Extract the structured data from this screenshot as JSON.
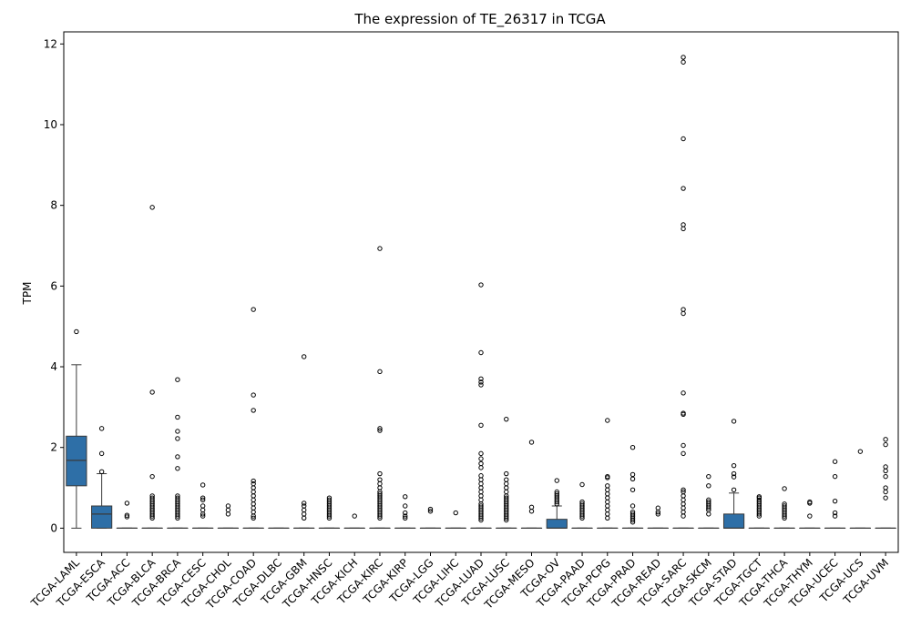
{
  "chart_data": {
    "type": "box",
    "title": "The expression of TE_26317 in TCGA",
    "xlabel": "",
    "ylabel": "TPM",
    "ylim": [
      -0.6,
      12.3
    ],
    "yticks": [
      0,
      2,
      4,
      6,
      8,
      10,
      12
    ],
    "color": "#2e6fa7",
    "categories": [
      "TCGA-LAML",
      "TCGA-ESCA",
      "TCGA-ACC",
      "TCGA-BLCA",
      "TCGA-BRCA",
      "TCGA-CESC",
      "TCGA-CHOL",
      "TCGA-COAD",
      "TCGA-DLBC",
      "TCGA-GBM",
      "TCGA-HNSC",
      "TCGA-KICH",
      "TCGA-KIRC",
      "TCGA-KIRP",
      "TCGA-LGG",
      "TCGA-LIHC",
      "TCGA-LUAD",
      "TCGA-LUSC",
      "TCGA-MESO",
      "TCGA-OV",
      "TCGA-PAAD",
      "TCGA-PCPG",
      "TCGA-PRAD",
      "TCGA-READ",
      "TCGA-SARC",
      "TCGA-SKCM",
      "TCGA-STAD",
      "TCGA-TGCT",
      "TCGA-THCA",
      "TCGA-THYM",
      "TCGA-UCEC",
      "TCGA-UCS",
      "TCGA-UVM"
    ],
    "boxes": [
      {
        "min": 0,
        "q1": 1.05,
        "median": 1.68,
        "q3": 2.28,
        "max": 4.05,
        "outliers": [
          4.87
        ]
      },
      {
        "min": 0,
        "q1": 0,
        "median": 0.35,
        "q3": 0.55,
        "max": 1.35,
        "outliers": [
          1.4,
          1.85,
          2.47
        ]
      },
      {
        "min": 0,
        "q1": 0,
        "median": 0,
        "q3": 0,
        "max": 0,
        "outliers": [
          0.28,
          0.32,
          0.62
        ]
      },
      {
        "min": 0,
        "q1": 0,
        "median": 0,
        "q3": 0,
        "max": 0,
        "outliers": [
          0.25,
          0.3,
          0.35,
          0.4,
          0.45,
          0.5,
          0.55,
          0.6,
          0.65,
          0.7,
          0.75,
          0.8,
          1.28,
          3.37,
          7.95
        ]
      },
      {
        "min": 0,
        "q1": 0,
        "median": 0,
        "q3": 0,
        "max": 0,
        "outliers": [
          0.25,
          0.3,
          0.35,
          0.4,
          0.45,
          0.5,
          0.55,
          0.6,
          0.65,
          0.7,
          0.75,
          0.8,
          1.48,
          1.77,
          2.22,
          2.4,
          2.75,
          3.68
        ]
      },
      {
        "min": 0,
        "q1": 0,
        "median": 0,
        "q3": 0,
        "max": 0,
        "outliers": [
          0.3,
          0.35,
          0.45,
          0.55,
          0.7,
          0.75,
          1.07
        ]
      },
      {
        "min": 0,
        "q1": 0,
        "median": 0,
        "q3": 0,
        "max": 0,
        "outliers": [
          0.35,
          0.45,
          0.55
        ]
      },
      {
        "min": 0,
        "q1": 0,
        "median": 0,
        "q3": 0,
        "max": 0,
        "outliers": [
          0.25,
          0.3,
          0.4,
          0.5,
          0.6,
          0.7,
          0.8,
          0.9,
          1.0,
          1.1,
          1.17,
          2.92,
          3.3,
          5.42
        ]
      },
      {
        "min": 0,
        "q1": 0,
        "median": 0,
        "q3": 0,
        "max": 0,
        "outliers": []
      },
      {
        "min": 0,
        "q1": 0,
        "median": 0,
        "q3": 0,
        "max": 0,
        "outliers": [
          0.25,
          0.35,
          0.45,
          0.55,
          0.62,
          4.25
        ]
      },
      {
        "min": 0,
        "q1": 0,
        "median": 0,
        "q3": 0,
        "max": 0,
        "outliers": [
          0.25,
          0.3,
          0.35,
          0.4,
          0.45,
          0.5,
          0.55,
          0.6,
          0.65,
          0.7,
          0.75
        ]
      },
      {
        "min": 0,
        "q1": 0,
        "median": 0,
        "q3": 0,
        "max": 0,
        "outliers": [
          0.3
        ]
      },
      {
        "min": 0,
        "q1": 0,
        "median": 0,
        "q3": 0,
        "max": 0,
        "outliers": [
          0.25,
          0.3,
          0.35,
          0.4,
          0.45,
          0.5,
          0.55,
          0.6,
          0.65,
          0.7,
          0.75,
          0.8,
          0.85,
          0.9,
          1.0,
          1.1,
          1.2,
          1.35,
          2.42,
          2.47,
          3.88,
          6.93
        ]
      },
      {
        "min": 0,
        "q1": 0,
        "median": 0,
        "q3": 0,
        "max": 0,
        "outliers": [
          0.25,
          0.3,
          0.38,
          0.55,
          0.78
        ]
      },
      {
        "min": 0,
        "q1": 0,
        "median": 0,
        "q3": 0,
        "max": 0,
        "outliers": [
          0.42,
          0.47
        ]
      },
      {
        "min": 0,
        "q1": 0,
        "median": 0,
        "q3": 0,
        "max": 0,
        "outliers": [
          0.38
        ]
      },
      {
        "min": 0,
        "q1": 0,
        "median": 0,
        "q3": 0,
        "max": 0,
        "outliers": [
          0.2,
          0.25,
          0.3,
          0.35,
          0.4,
          0.45,
          0.5,
          0.55,
          0.6,
          0.7,
          0.8,
          0.9,
          1.0,
          1.1,
          1.2,
          1.3,
          1.5,
          1.6,
          1.72,
          1.85,
          2.55,
          3.55,
          3.62,
          3.7,
          4.35,
          6.03
        ]
      },
      {
        "min": 0,
        "q1": 0,
        "median": 0,
        "q3": 0,
        "max": 0,
        "outliers": [
          0.2,
          0.25,
          0.3,
          0.35,
          0.4,
          0.45,
          0.5,
          0.55,
          0.6,
          0.65,
          0.7,
          0.75,
          0.8,
          0.9,
          1.0,
          1.1,
          1.2,
          1.35,
          2.7
        ]
      },
      {
        "min": 0,
        "q1": 0,
        "median": 0,
        "q3": 0,
        "max": 0,
        "outliers": [
          0.42,
          0.52,
          2.13
        ]
      },
      {
        "min": 0,
        "q1": 0,
        "median": 0,
        "q3": 0.22,
        "max": 0.55,
        "outliers": [
          0.6,
          0.65,
          0.7,
          0.75,
          0.8,
          0.85,
          0.9,
          1.18
        ]
      },
      {
        "min": 0,
        "q1": 0,
        "median": 0,
        "q3": 0,
        "max": 0,
        "outliers": [
          0.25,
          0.3,
          0.35,
          0.4,
          0.45,
          0.5,
          0.55,
          0.6,
          0.65,
          1.08
        ]
      },
      {
        "min": 0,
        "q1": 0,
        "median": 0,
        "q3": 0,
        "max": 0,
        "outliers": [
          0.25,
          0.35,
          0.45,
          0.55,
          0.65,
          0.75,
          0.85,
          0.95,
          1.05,
          1.25,
          1.28,
          2.67
        ]
      },
      {
        "min": 0,
        "q1": 0,
        "median": 0,
        "q3": 0,
        "max": 0,
        "outliers": [
          0.15,
          0.2,
          0.25,
          0.3,
          0.35,
          0.4,
          0.55,
          0.95,
          1.22,
          1.33,
          2.0
        ]
      },
      {
        "min": 0,
        "q1": 0,
        "median": 0,
        "q3": 0,
        "max": 0,
        "outliers": [
          0.35,
          0.4,
          0.5
        ]
      },
      {
        "min": 0,
        "q1": 0,
        "median": 0,
        "q3": 0,
        "max": 0,
        "outliers": [
          0.3,
          0.4,
          0.5,
          0.6,
          0.7,
          0.8,
          0.9,
          0.95,
          1.85,
          2.05,
          2.82,
          2.85,
          3.35,
          5.32,
          5.42,
          7.42,
          7.52,
          8.42,
          9.65,
          11.55,
          11.67
        ]
      },
      {
        "min": 0,
        "q1": 0,
        "median": 0,
        "q3": 0,
        "max": 0,
        "outliers": [
          0.35,
          0.45,
          0.5,
          0.55,
          0.6,
          0.65,
          0.7,
          1.05,
          1.28
        ]
      },
      {
        "min": 0,
        "q1": 0,
        "median": 0,
        "q3": 0.35,
        "max": 0.87,
        "outliers": [
          0.95,
          1.27,
          1.35,
          1.55,
          2.65
        ]
      },
      {
        "min": 0,
        "q1": 0,
        "median": 0,
        "q3": 0,
        "max": 0,
        "outliers": [
          0.3,
          0.35,
          0.4,
          0.45,
          0.5,
          0.55,
          0.6,
          0.65,
          0.7,
          0.75,
          0.78
        ]
      },
      {
        "min": 0,
        "q1": 0,
        "median": 0,
        "q3": 0,
        "max": 0,
        "outliers": [
          0.25,
          0.3,
          0.35,
          0.4,
          0.45,
          0.5,
          0.55,
          0.6,
          0.98
        ]
      },
      {
        "min": 0,
        "q1": 0,
        "median": 0,
        "q3": 0,
        "max": 0,
        "outliers": [
          0.3,
          0.62,
          0.65
        ]
      },
      {
        "min": 0,
        "q1": 0,
        "median": 0,
        "q3": 0,
        "max": 0,
        "outliers": [
          0.3,
          0.38,
          0.67,
          1.28,
          1.65
        ]
      },
      {
        "min": 0,
        "q1": 0,
        "median": 0,
        "q3": 0,
        "max": 0,
        "outliers": [
          1.9
        ]
      },
      {
        "min": 0,
        "q1": 0,
        "median": 0,
        "q3": 0,
        "max": 0,
        "outliers": [
          0.75,
          0.9,
          1.0,
          1.28,
          1.42,
          1.52,
          2.07,
          2.2
        ]
      }
    ]
  }
}
